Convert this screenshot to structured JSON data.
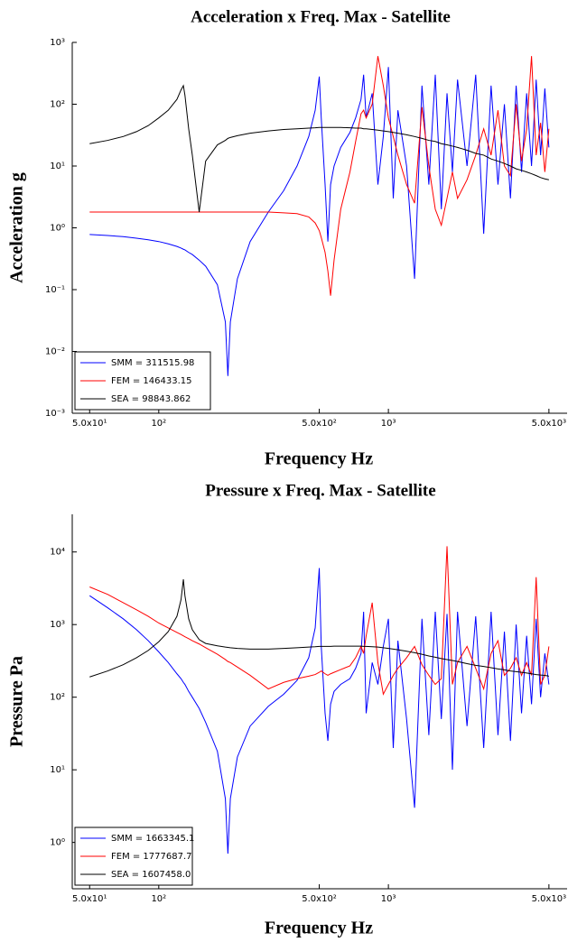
{
  "chart_data": [
    {
      "type": "line",
      "title": "Acceleration x Freq. Max - Satellite",
      "x_label": "Frequency Hz",
      "y_label": "Acceleration g",
      "log_x": true,
      "log_y": true,
      "grid": false,
      "legend": "lower left",
      "xlim": [
        42,
        6000
      ],
      "ylim": [
        0.001,
        1000
      ],
      "xticks": [
        {
          "value": 50,
          "label": "5.0x10¹"
        },
        {
          "value": 100,
          "label": "10²"
        },
        {
          "value": 500,
          "label": "5.0x10²"
        },
        {
          "value": 1000,
          "label": "10³"
        },
        {
          "value": 5000,
          "label": "5.0x10³"
        }
      ],
      "yticks": [
        {
          "value": 1000,
          "label": "10³"
        },
        {
          "value": 100,
          "label": "10²"
        },
        {
          "value": 10,
          "label": "10¹"
        },
        {
          "value": 1,
          "label": "10⁰"
        },
        {
          "value": 0.1,
          "label": "10⁻¹"
        },
        {
          "value": 0.01,
          "label": "10⁻²"
        },
        {
          "value": 0.001,
          "label": "10⁻³"
        }
      ],
      "x": [
        50,
        60,
        70,
        80,
        90,
        100,
        110,
        120,
        125,
        128,
        130,
        135,
        140,
        150,
        160,
        180,
        195,
        200,
        205,
        220,
        250,
        300,
        350,
        400,
        450,
        480,
        500,
        510,
        530,
        545,
        560,
        580,
        620,
        680,
        720,
        760,
        780,
        800,
        850,
        900,
        950,
        1000,
        1050,
        1100,
        1200,
        1300,
        1400,
        1500,
        1600,
        1700,
        1800,
        1900,
        2000,
        2200,
        2400,
        2600,
        2800,
        3000,
        3200,
        3400,
        3600,
        3800,
        4000,
        4200,
        4400,
        4600,
        4800,
        5000
      ],
      "series": [
        {
          "name": "SMM = 311515.98",
          "color": "#0000ff",
          "values": [
            0.78,
            0.75,
            0.72,
            0.68,
            0.64,
            0.6,
            0.55,
            0.5,
            0.47,
            0.45,
            0.44,
            0.4,
            0.37,
            0.3,
            0.24,
            0.12,
            0.03,
            0.004,
            0.03,
            0.15,
            0.6,
            1.8,
            4,
            10,
            30,
            80,
            280,
            60,
            5,
            0.6,
            5,
            10,
            20,
            35,
            60,
            120,
            300,
            60,
            150,
            5,
            30,
            400,
            3,
            80,
            10,
            0.15,
            200,
            5,
            300,
            2,
            150,
            8,
            250,
            10,
            300,
            0.8,
            200,
            5,
            100,
            3,
            200,
            8,
            150,
            10,
            250,
            15,
            180,
            20
          ]
        },
        {
          "name": "FEM = 146433.15",
          "color": "#ff0000",
          "values": [
            1.8,
            1.8,
            1.8,
            1.8,
            1.8,
            1.8,
            1.8,
            1.8,
            1.8,
            1.8,
            1.8,
            1.8,
            1.8,
            1.8,
            1.8,
            1.8,
            1.8,
            1.8,
            1.8,
            1.8,
            1.8,
            1.8,
            1.75,
            1.7,
            1.5,
            1.2,
            0.9,
            0.7,
            0.4,
            0.2,
            0.08,
            0.3,
            2,
            8,
            25,
            70,
            80,
            60,
            100,
            600,
            200,
            60,
            30,
            15,
            5,
            2.5,
            90,
            10,
            2,
            1.1,
            3,
            8,
            3,
            6,
            15,
            40,
            15,
            80,
            10,
            7,
            100,
            12,
            40,
            600,
            15,
            50,
            8,
            40
          ]
        },
        {
          "name": "SEA = 98843.862",
          "color": "#000000",
          "values": [
            23,
            26,
            30,
            36,
            45,
            60,
            80,
            120,
            170,
            200,
            140,
            40,
            15,
            1.8,
            12,
            22,
            26,
            28,
            29,
            31,
            34,
            37,
            39,
            40,
            41,
            41.5,
            42,
            42,
            42,
            42,
            42,
            42,
            42,
            41.5,
            41,
            41,
            40,
            40,
            39,
            38,
            37,
            36,
            35,
            34,
            32,
            30,
            28,
            26,
            25,
            23,
            22,
            21,
            20,
            18,
            16,
            15,
            13,
            12,
            11,
            10,
            9,
            8.5,
            8,
            7.5,
            7,
            6.5,
            6.2,
            6
          ]
        }
      ]
    },
    {
      "type": "line",
      "title": "Pressure x Freq. Max - Satellite",
      "x_label": "Frequency Hz",
      "y_label": "Pressure Pa",
      "log_x": true,
      "log_y": true,
      "grid": false,
      "legend": "lower left",
      "xlim": [
        42,
        6000
      ],
      "ylim": [
        0.23,
        33000
      ],
      "xticks": [
        {
          "value": 50,
          "label": "5.0x10¹"
        },
        {
          "value": 100,
          "label": "10²"
        },
        {
          "value": 500,
          "label": "5.0x10²"
        },
        {
          "value": 1000,
          "label": "10³"
        },
        {
          "value": 5000,
          "label": "5.0x10³"
        }
      ],
      "yticks": [
        {
          "value": 10000,
          "label": "10⁴"
        },
        {
          "value": 1000,
          "label": "10³"
        },
        {
          "value": 100,
          "label": "10²"
        },
        {
          "value": 10,
          "label": "10¹"
        },
        {
          "value": 1,
          "label": "10⁰"
        }
      ],
      "x": [
        50,
        60,
        70,
        80,
        90,
        100,
        110,
        120,
        125,
        128,
        130,
        135,
        140,
        150,
        160,
        180,
        195,
        200,
        205,
        220,
        250,
        300,
        350,
        400,
        450,
        480,
        500,
        510,
        530,
        545,
        560,
        580,
        620,
        680,
        720,
        760,
        780,
        800,
        850,
        900,
        950,
        1000,
        1050,
        1100,
        1200,
        1300,
        1400,
        1500,
        1600,
        1700,
        1800,
        1900,
        2000,
        2200,
        2400,
        2600,
        2800,
        3000,
        3200,
        3400,
        3600,
        3800,
        4000,
        4200,
        4400,
        4600,
        4800,
        5000
      ],
      "series": [
        {
          "name": "SMM = 1663345.1",
          "color": "#0000ff",
          "values": [
            2500,
            1700,
            1200,
            850,
            600,
            420,
            300,
            210,
            180,
            160,
            150,
            120,
            100,
            70,
            45,
            18,
            4,
            0.7,
            4,
            15,
            40,
            75,
            110,
            170,
            350,
            900,
            6000,
            500,
            60,
            25,
            80,
            120,
            150,
            180,
            250,
            400,
            1500,
            60,
            300,
            150,
            500,
            1200,
            20,
            600,
            50,
            3,
            1200,
            30,
            1500,
            50,
            1400,
            10,
            1500,
            40,
            1300,
            20,
            1500,
            30,
            800,
            25,
            1000,
            60,
            700,
            80,
            1200,
            100,
            400,
            150
          ]
        },
        {
          "name": "FEM = 1777687.7",
          "color": "#ff0000",
          "values": [
            3300,
            2600,
            2000,
            1600,
            1300,
            1050,
            900,
            780,
            730,
            700,
            680,
            640,
            600,
            540,
            480,
            390,
            330,
            310,
            300,
            260,
            200,
            130,
            160,
            180,
            195,
            205,
            220,
            230,
            210,
            200,
            210,
            220,
            240,
            270,
            350,
            500,
            400,
            700,
            2000,
            300,
            110,
            150,
            200,
            250,
            350,
            500,
            280,
            200,
            150,
            180,
            12000,
            150,
            300,
            500,
            250,
            130,
            400,
            600,
            200,
            250,
            350,
            200,
            300,
            200,
            4500,
            150,
            200,
            500
          ]
        },
        {
          "name": "SEA = 1607458.0",
          "color": "#000000",
          "values": [
            190,
            230,
            280,
            350,
            440,
            580,
            800,
            1300,
            2200,
            4200,
            2500,
            1200,
            850,
            620,
            550,
            510,
            490,
            485,
            480,
            470,
            460,
            460,
            470,
            480,
            490,
            495,
            500,
            500,
            500,
            500,
            500,
            505,
            505,
            505,
            505,
            505,
            500,
            500,
            495,
            490,
            480,
            470,
            460,
            450,
            430,
            410,
            390,
            370,
            355,
            340,
            330,
            320,
            310,
            290,
            275,
            265,
            255,
            245,
            238,
            230,
            225,
            220,
            215,
            210,
            205,
            202,
            200,
            195
          ]
        }
      ]
    }
  ]
}
